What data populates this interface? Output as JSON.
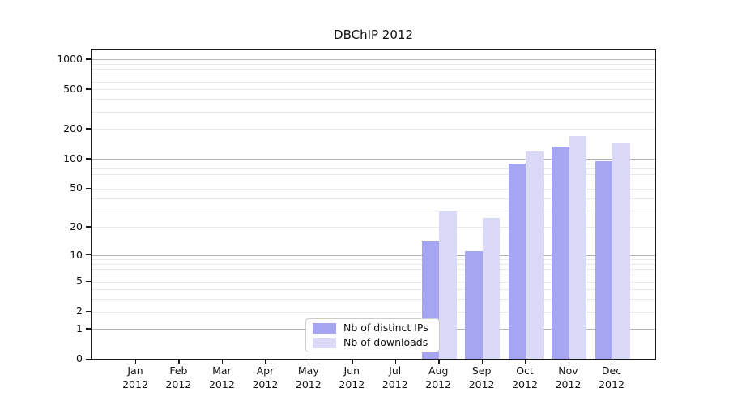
{
  "chart_data": {
    "type": "bar",
    "title": "DBChIP 2012",
    "year_label": "2012",
    "categories": [
      "Jan",
      "Feb",
      "Mar",
      "Apr",
      "May",
      "Jun",
      "Jul",
      "Aug",
      "Sep",
      "Oct",
      "Nov",
      "Dec"
    ],
    "series": [
      {
        "name": "Nb of distinct IPs",
        "color": "#a5a5f1",
        "values": [
          0,
          0,
          0,
          0,
          0,
          0,
          0,
          14,
          11,
          90,
          133,
          94
        ]
      },
      {
        "name": "Nb of downloads",
        "color": "#dadaf8",
        "values": [
          0,
          0,
          0,
          0,
          0,
          0,
          0,
          29,
          25,
          119,
          170,
          146
        ]
      }
    ],
    "y_ticks": [
      0,
      1,
      2,
      5,
      10,
      20,
      50,
      100,
      200,
      500,
      1000
    ],
    "ylim": [
      0,
      1100
    ],
    "y_scale": "log1p",
    "xlabel": "",
    "ylabel": "",
    "grid": "horizontal, minor lines light gray, decade lines darker",
    "legend_position": "inside bottom-center",
    "colors": {
      "bar_dark": "#a5a5f1",
      "bar_light": "#dadaf8",
      "grid_minor": "#e9e9e9",
      "grid_major": "#b4b4b4",
      "frame": "#1a1a1a"
    }
  }
}
